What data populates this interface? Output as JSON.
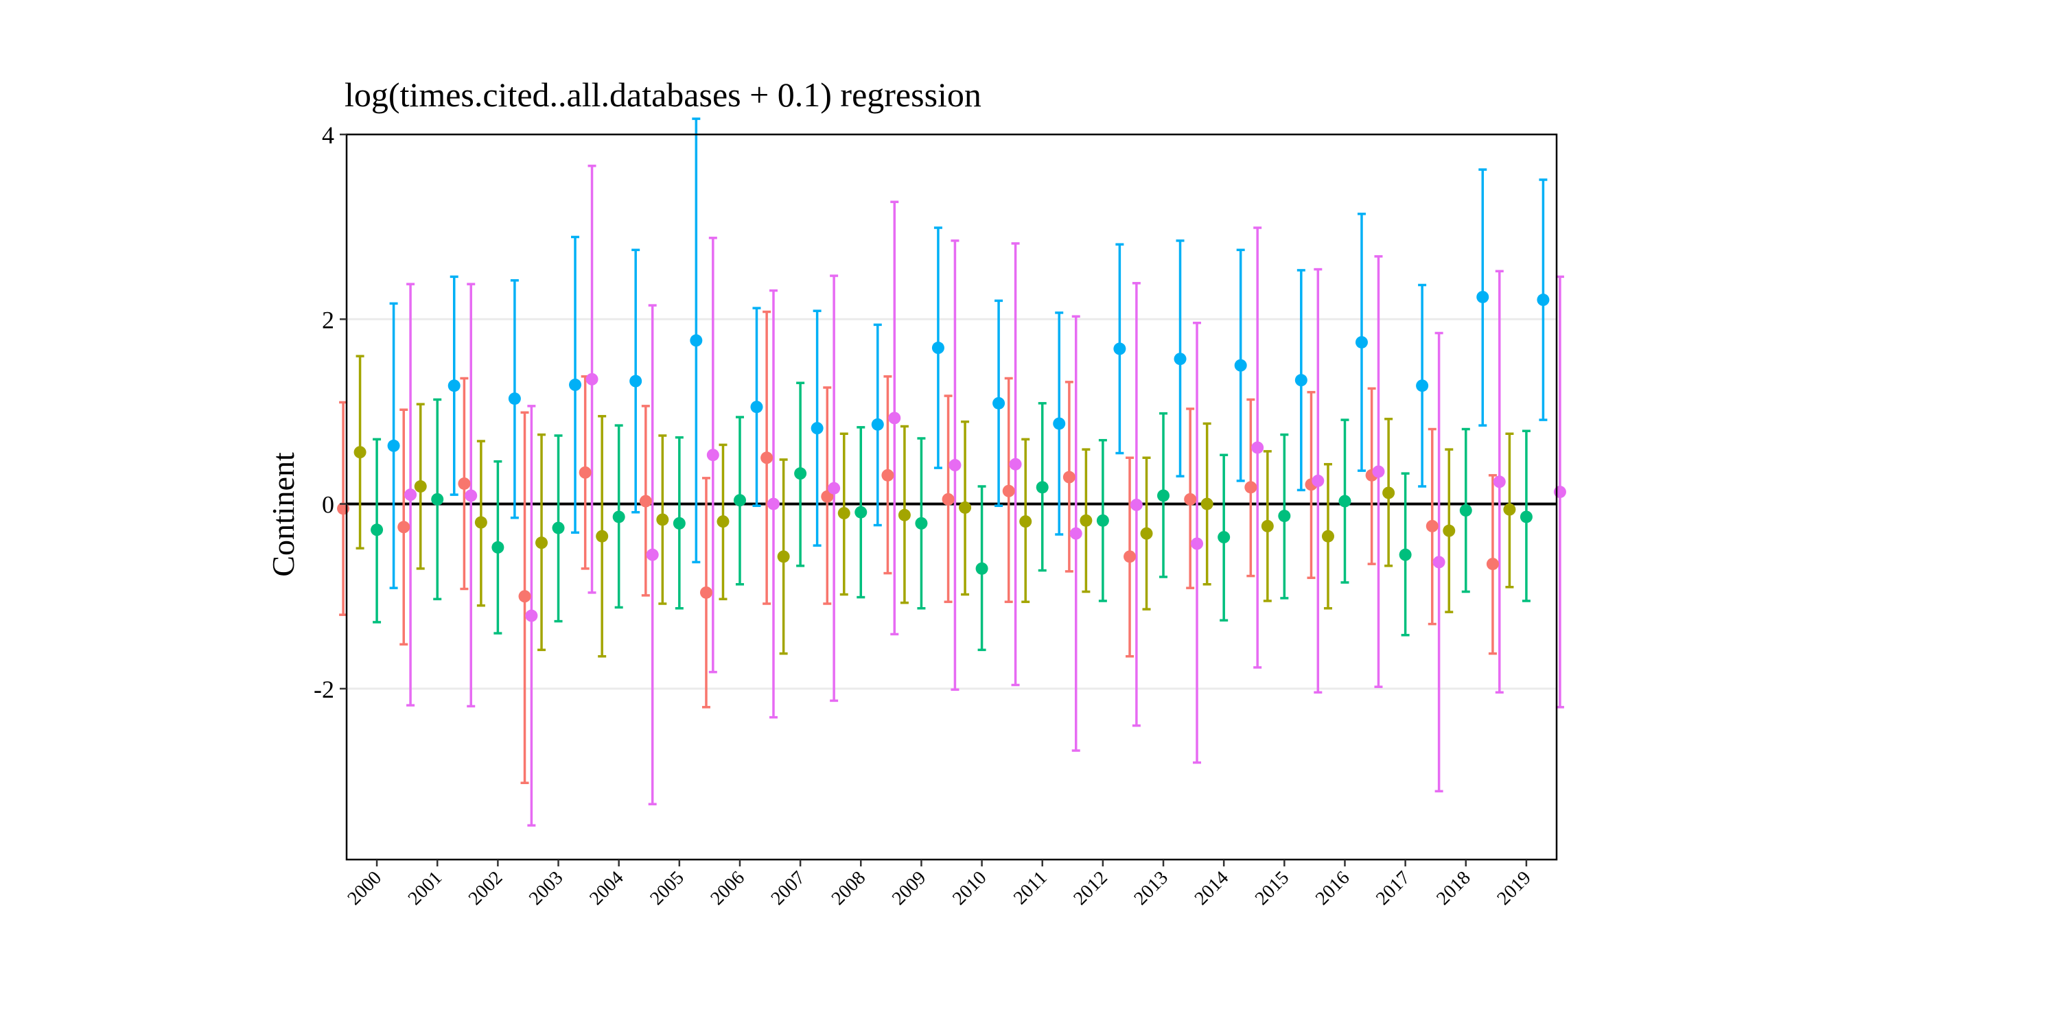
{
  "chart_data": {
    "type": "scatter",
    "subtype": "point-range (estimate with error bars)",
    "title": "log(times.cited..all.databases + 0.1) regression",
    "xlabel": "",
    "ylabel": "Continent",
    "ylim": [
      -3.85,
      4.0
    ],
    "yticks": [
      -2,
      0,
      2,
      4
    ],
    "y_tick_labels": [
      "-2",
      "0",
      "2",
      "4"
    ],
    "grid": "horizontal major gridlines",
    "reference_line_y": 0,
    "legend": "none",
    "categories": [
      "2000",
      "2001",
      "2002",
      "2003",
      "2004",
      "2005",
      "2006",
      "2007",
      "2008",
      "2009",
      "2010",
      "2011",
      "2012",
      "2013",
      "2014",
      "2015",
      "2016",
      "2017",
      "2018",
      "2019"
    ],
    "series": [
      {
        "color": "#F8766D",
        "estimate": [
          -0.05,
          -0.25,
          0.22,
          -1.0,
          0.34,
          0.03,
          -0.96,
          0.5,
          0.08,
          0.31,
          0.05,
          0.14,
          0.29,
          -0.57,
          0.05,
          0.18,
          0.21,
          0.31,
          -0.24,
          -0.65
        ],
        "lower": [
          -1.2,
          -1.52,
          -0.92,
          -3.02,
          -0.7,
          -0.99,
          -2.2,
          -1.08,
          -1.08,
          -0.75,
          -1.06,
          -1.06,
          -0.73,
          -1.65,
          -0.91,
          -0.78,
          -0.8,
          -0.65,
          -1.3,
          -1.62
        ],
        "upper": [
          1.1,
          1.02,
          1.36,
          0.99,
          1.38,
          1.06,
          0.28,
          2.08,
          1.26,
          1.38,
          1.17,
          1.36,
          1.32,
          0.5,
          1.03,
          1.13,
          1.21,
          1.25,
          0.81,
          0.31
        ]
      },
      {
        "color": "#A3A500",
        "estimate": [
          0.56,
          0.19,
          -0.2,
          -0.42,
          -0.35,
          -0.17,
          -0.19,
          -0.57,
          -0.1,
          -0.12,
          -0.04,
          -0.19,
          -0.18,
          -0.32,
          0.0,
          -0.24,
          -0.35,
          0.12,
          -0.29,
          -0.06
        ],
        "lower": [
          -0.48,
          -0.7,
          -1.1,
          -1.58,
          -1.65,
          -1.08,
          -1.03,
          -1.62,
          -0.98,
          -1.07,
          -0.98,
          -1.06,
          -0.95,
          -1.14,
          -0.87,
          -1.05,
          -1.13,
          -0.67,
          -1.17,
          -0.9
        ],
        "upper": [
          1.6,
          1.08,
          0.68,
          0.75,
          0.95,
          0.74,
          0.64,
          0.48,
          0.76,
          0.84,
          0.89,
          0.7,
          0.59,
          0.5,
          0.87,
          0.57,
          0.43,
          0.92,
          0.59,
          0.76
        ]
      },
      {
        "color": "#00BF7D",
        "estimate": [
          -0.28,
          0.05,
          -0.47,
          -0.26,
          -0.14,
          -0.21,
          0.04,
          0.33,
          -0.09,
          -0.21,
          -0.7,
          0.18,
          -0.18,
          0.09,
          -0.36,
          -0.13,
          0.03,
          -0.55,
          -0.07,
          -0.14
        ],
        "lower": [
          -1.28,
          -1.03,
          -1.4,
          -1.27,
          -1.12,
          -1.13,
          -0.87,
          -0.67,
          -1.01,
          -1.13,
          -1.58,
          -0.72,
          -1.05,
          -0.79,
          -1.26,
          -1.02,
          -0.85,
          -1.42,
          -0.95,
          -1.05
        ],
        "upper": [
          0.7,
          1.13,
          0.46,
          0.74,
          0.85,
          0.72,
          0.94,
          1.31,
          0.83,
          0.71,
          0.19,
          1.09,
          0.69,
          0.98,
          0.53,
          0.75,
          0.91,
          0.33,
          0.81,
          0.79
        ]
      },
      {
        "color": "#00B0F6",
        "estimate": [
          0.63,
          1.28,
          1.14,
          1.29,
          1.33,
          1.77,
          1.05,
          0.82,
          0.86,
          1.69,
          1.09,
          0.87,
          1.68,
          1.57,
          1.5,
          1.34,
          1.75,
          1.28,
          2.24,
          2.21
        ],
        "lower": [
          -0.91,
          0.1,
          -0.15,
          -0.31,
          -0.09,
          -0.63,
          -0.02,
          -0.45,
          -0.23,
          0.39,
          -0.02,
          -0.33,
          0.55,
          0.3,
          0.25,
          0.15,
          0.36,
          0.19,
          0.85,
          0.91
        ],
        "upper": [
          2.17,
          2.46,
          2.42,
          2.89,
          2.75,
          4.17,
          2.12,
          2.09,
          1.94,
          2.99,
          2.2,
          2.07,
          2.81,
          2.85,
          2.75,
          2.53,
          3.14,
          2.37,
          3.62,
          3.51
        ]
      },
      {
        "color": "#E76BF3",
        "estimate": [
          0.1,
          0.09,
          -1.21,
          1.35,
          -0.55,
          0.53,
          0.0,
          0.17,
          0.93,
          0.42,
          0.43,
          -0.32,
          -0.01,
          -0.43,
          0.61,
          0.25,
          0.35,
          -0.63,
          0.24,
          0.13
        ],
        "lower": [
          -2.18,
          -2.19,
          -3.48,
          -0.96,
          -3.25,
          -1.82,
          -2.31,
          -2.13,
          -1.41,
          -2.01,
          -1.96,
          -2.67,
          -2.4,
          -2.8,
          -1.77,
          -2.04,
          -1.98,
          -3.11,
          -2.04,
          -2.2
        ],
        "upper": [
          2.38,
          2.38,
          1.06,
          3.66,
          2.15,
          2.88,
          2.31,
          2.47,
          3.27,
          2.85,
          2.82,
          2.03,
          2.39,
          1.96,
          2.99,
          2.54,
          2.68,
          1.85,
          2.52,
          2.46
        ]
      }
    ]
  }
}
